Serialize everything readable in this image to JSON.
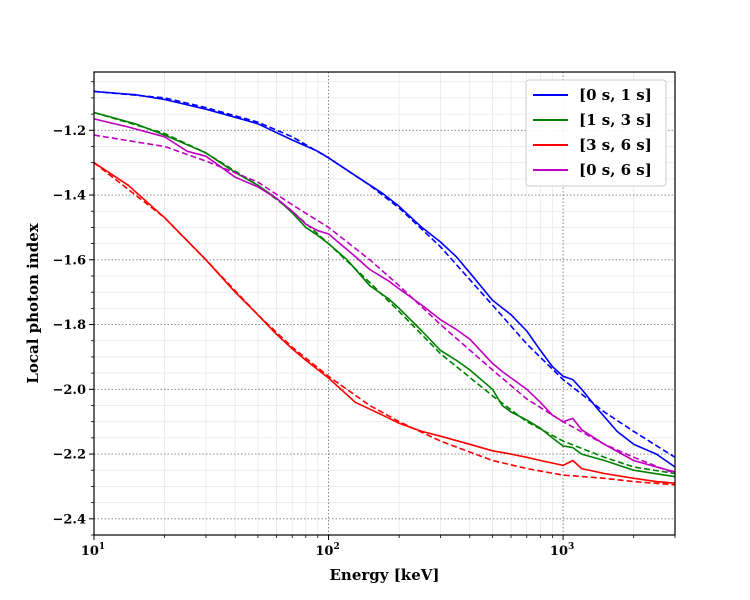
{
  "chart_data": {
    "type": "line",
    "title": "",
    "xlabel": "Energy [keV]",
    "ylabel": "Local photon index",
    "xscale": "log",
    "xlim": [
      10,
      3000
    ],
    "ylim": [
      -2.45,
      -1.02
    ],
    "x_ticks": [
      {
        "value": 10,
        "base": "10",
        "exp": "1"
      },
      {
        "value": 100,
        "base": "10",
        "exp": "2"
      },
      {
        "value": 1000,
        "base": "10",
        "exp": "3"
      }
    ],
    "y_ticks": [
      {
        "value": -1.2,
        "label": "−1.2"
      },
      {
        "value": -1.4,
        "label": "−1.4"
      },
      {
        "value": -1.6,
        "label": "−1.6"
      },
      {
        "value": -1.8,
        "label": "−1.8"
      },
      {
        "value": -2.0,
        "label": "−2.0"
      },
      {
        "value": -2.2,
        "label": "−2.2"
      },
      {
        "value": -2.4,
        "label": "−2.4"
      }
    ],
    "grid": true,
    "legend_position": "top-right",
    "series": [
      {
        "name": "[0 s, 1 s]",
        "color": "#0000ff",
        "solid": [
          [
            10,
            -1.08
          ],
          [
            15,
            -1.09
          ],
          [
            20,
            -1.105
          ],
          [
            30,
            -1.135
          ],
          [
            40,
            -1.16
          ],
          [
            50,
            -1.18
          ],
          [
            70,
            -1.23
          ],
          [
            90,
            -1.265
          ],
          [
            100,
            -1.285
          ],
          [
            130,
            -1.34
          ],
          [
            170,
            -1.395
          ],
          [
            200,
            -1.435
          ],
          [
            250,
            -1.5
          ],
          [
            300,
            -1.545
          ],
          [
            350,
            -1.59
          ],
          [
            400,
            -1.64
          ],
          [
            500,
            -1.725
          ],
          [
            600,
            -1.77
          ],
          [
            700,
            -1.82
          ],
          [
            800,
            -1.88
          ],
          [
            900,
            -1.93
          ],
          [
            1000,
            -1.96
          ],
          [
            1100,
            -1.97
          ],
          [
            1200,
            -2.0
          ],
          [
            1400,
            -2.06
          ],
          [
            1700,
            -2.13
          ],
          [
            2000,
            -2.17
          ],
          [
            2500,
            -2.2
          ],
          [
            3000,
            -2.24
          ]
        ],
        "dashed": [
          [
            10,
            -1.08
          ],
          [
            20,
            -1.1
          ],
          [
            30,
            -1.13
          ],
          [
            50,
            -1.175
          ],
          [
            70,
            -1.22
          ],
          [
            100,
            -1.285
          ],
          [
            150,
            -1.37
          ],
          [
            200,
            -1.44
          ],
          [
            300,
            -1.56
          ],
          [
            500,
            -1.74
          ],
          [
            700,
            -1.86
          ],
          [
            1000,
            -1.97
          ],
          [
            1500,
            -2.07
          ],
          [
            2000,
            -2.13
          ],
          [
            3000,
            -2.21
          ]
        ]
      },
      {
        "name": "[1 s, 3 s]",
        "color": "#008000",
        "solid": [
          [
            10,
            -1.145
          ],
          [
            15,
            -1.18
          ],
          [
            20,
            -1.215
          ],
          [
            25,
            -1.245
          ],
          [
            30,
            -1.27
          ],
          [
            40,
            -1.33
          ],
          [
            50,
            -1.37
          ],
          [
            60,
            -1.41
          ],
          [
            70,
            -1.455
          ],
          [
            80,
            -1.5
          ],
          [
            90,
            -1.525
          ],
          [
            100,
            -1.55
          ],
          [
            120,
            -1.6
          ],
          [
            150,
            -1.68
          ],
          [
            180,
            -1.72
          ],
          [
            200,
            -1.75
          ],
          [
            250,
            -1.82
          ],
          [
            300,
            -1.88
          ],
          [
            350,
            -1.91
          ],
          [
            400,
            -1.94
          ],
          [
            500,
            -2.0
          ],
          [
            550,
            -2.05
          ],
          [
            600,
            -2.07
          ],
          [
            700,
            -2.095
          ],
          [
            800,
            -2.12
          ],
          [
            900,
            -2.15
          ],
          [
            1000,
            -2.175
          ],
          [
            1100,
            -2.18
          ],
          [
            1200,
            -2.2
          ],
          [
            1500,
            -2.22
          ],
          [
            2000,
            -2.25
          ],
          [
            3000,
            -2.27
          ]
        ],
        "dashed": [
          [
            10,
            -1.145
          ],
          [
            20,
            -1.21
          ],
          [
            30,
            -1.27
          ],
          [
            50,
            -1.37
          ],
          [
            70,
            -1.45
          ],
          [
            100,
            -1.55
          ],
          [
            150,
            -1.67
          ],
          [
            200,
            -1.76
          ],
          [
            300,
            -1.89
          ],
          [
            500,
            -2.02
          ],
          [
            700,
            -2.1
          ],
          [
            1000,
            -2.16
          ],
          [
            1500,
            -2.21
          ],
          [
            2000,
            -2.24
          ],
          [
            3000,
            -2.26
          ]
        ]
      },
      {
        "name": "[3 s, 6 s]",
        "color": "#ff0000",
        "solid": [
          [
            10,
            -1.3
          ],
          [
            14,
            -1.37
          ],
          [
            20,
            -1.47
          ],
          [
            30,
            -1.6
          ],
          [
            40,
            -1.7
          ],
          [
            50,
            -1.77
          ],
          [
            60,
            -1.83
          ],
          [
            70,
            -1.875
          ],
          [
            80,
            -1.91
          ],
          [
            100,
            -1.965
          ],
          [
            130,
            -2.04
          ],
          [
            170,
            -2.08
          ],
          [
            200,
            -2.105
          ],
          [
            250,
            -2.13
          ],
          [
            300,
            -2.145
          ],
          [
            400,
            -2.17
          ],
          [
            500,
            -2.19
          ],
          [
            600,
            -2.2
          ],
          [
            700,
            -2.21
          ],
          [
            800,
            -2.22
          ],
          [
            1000,
            -2.235
          ],
          [
            1100,
            -2.22
          ],
          [
            1200,
            -2.245
          ],
          [
            1500,
            -2.26
          ],
          [
            2000,
            -2.275
          ],
          [
            2500,
            -2.285
          ],
          [
            3000,
            -2.29
          ]
        ],
        "dashed": [
          [
            10,
            -1.3
          ],
          [
            20,
            -1.47
          ],
          [
            30,
            -1.6
          ],
          [
            50,
            -1.77
          ],
          [
            70,
            -1.87
          ],
          [
            100,
            -1.96
          ],
          [
            150,
            -2.05
          ],
          [
            200,
            -2.1
          ],
          [
            300,
            -2.16
          ],
          [
            500,
            -2.22
          ],
          [
            700,
            -2.245
          ],
          [
            1000,
            -2.265
          ],
          [
            1500,
            -2.275
          ],
          [
            2000,
            -2.285
          ],
          [
            3000,
            -2.295
          ]
        ]
      },
      {
        "name": "[0 s, 6 s]",
        "color": "#c000c0",
        "solid": [
          [
            10,
            -1.165
          ],
          [
            14,
            -1.19
          ],
          [
            20,
            -1.22
          ],
          [
            25,
            -1.265
          ],
          [
            30,
            -1.28
          ],
          [
            40,
            -1.345
          ],
          [
            50,
            -1.375
          ],
          [
            60,
            -1.41
          ],
          [
            70,
            -1.45
          ],
          [
            80,
            -1.49
          ],
          [
            90,
            -1.51
          ],
          [
            100,
            -1.52
          ],
          [
            130,
            -1.59
          ],
          [
            150,
            -1.63
          ],
          [
            180,
            -1.665
          ],
          [
            200,
            -1.69
          ],
          [
            250,
            -1.74
          ],
          [
            300,
            -1.785
          ],
          [
            350,
            -1.815
          ],
          [
            400,
            -1.845
          ],
          [
            500,
            -1.92
          ],
          [
            550,
            -1.945
          ],
          [
            700,
            -2.0
          ],
          [
            800,
            -2.04
          ],
          [
            900,
            -2.08
          ],
          [
            1000,
            -2.1
          ],
          [
            1100,
            -2.09
          ],
          [
            1200,
            -2.125
          ],
          [
            1500,
            -2.17
          ],
          [
            2000,
            -2.22
          ],
          [
            2500,
            -2.24
          ],
          [
            3000,
            -2.255
          ]
        ],
        "dashed": [
          [
            10,
            -1.215
          ],
          [
            20,
            -1.25
          ],
          [
            30,
            -1.295
          ],
          [
            50,
            -1.36
          ],
          [
            70,
            -1.43
          ],
          [
            100,
            -1.5
          ],
          [
            150,
            -1.6
          ],
          [
            200,
            -1.68
          ],
          [
            300,
            -1.8
          ],
          [
            500,
            -1.94
          ],
          [
            700,
            -2.03
          ],
          [
            1000,
            -2.1
          ],
          [
            1500,
            -2.17
          ],
          [
            2000,
            -2.21
          ],
          [
            3000,
            -2.26
          ]
        ]
      }
    ]
  }
}
